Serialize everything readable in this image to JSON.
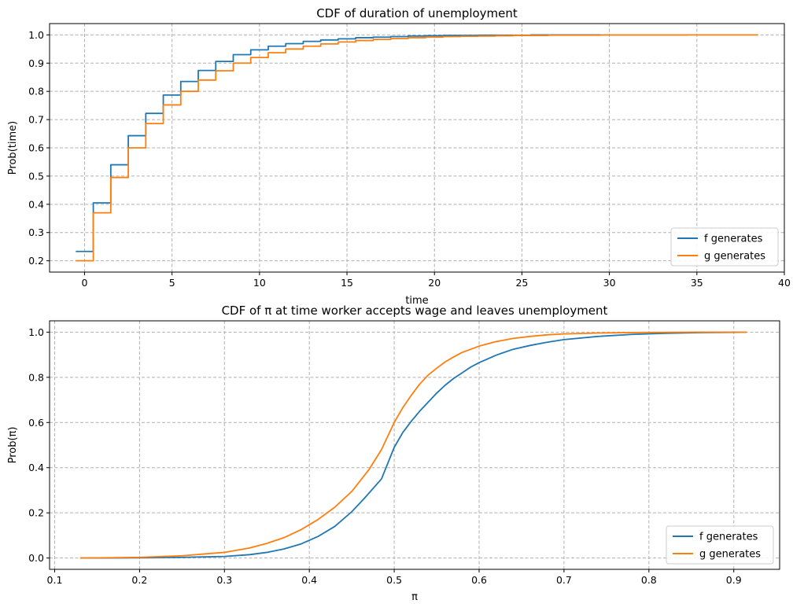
{
  "chart_data": [
    {
      "type": "line",
      "title": "CDF of duration of unemployment",
      "xlabel": "time",
      "ylabel": "Prob(time)",
      "xlim": [
        -2,
        40
      ],
      "ylim": [
        0.16,
        1.04
      ],
      "xticks": [
        0,
        5,
        10,
        15,
        20,
        25,
        30,
        35,
        40
      ],
      "xtick_labels": [
        "0",
        "5",
        "10",
        "15",
        "20",
        "25",
        "30",
        "35",
        "40"
      ],
      "yticks": [
        0.2,
        0.3,
        0.4,
        0.5,
        0.6,
        0.7,
        0.8,
        0.9,
        1.0
      ],
      "ytick_labels": [
        "0.2",
        "0.3",
        "0.4",
        "0.5",
        "0.6",
        "0.7",
        "0.8",
        "0.9",
        "1.0"
      ],
      "grid": true,
      "legend_position": "lower-right",
      "step": true,
      "series": [
        {
          "name": "f generates",
          "color": "#1f77b4",
          "x": [
            0,
            1,
            2,
            3,
            4,
            5,
            6,
            7,
            8,
            9,
            10,
            11,
            12,
            13,
            14,
            15,
            16,
            17,
            18,
            19,
            20,
            21,
            22,
            23,
            24,
            25,
            26,
            27,
            28,
            29,
            30,
            31,
            32,
            33,
            34
          ],
          "y": [
            0.233,
            0.405,
            0.54,
            0.643,
            0.722,
            0.787,
            0.835,
            0.874,
            0.906,
            0.93,
            0.947,
            0.96,
            0.969,
            0.977,
            0.982,
            0.986,
            0.99,
            0.992,
            0.994,
            0.996,
            0.997,
            0.998,
            0.998,
            0.999,
            0.999,
            0.999,
            1.0,
            1.0,
            1.0,
            1.0,
            1.0,
            1.0,
            1.0,
            1.0,
            1.0
          ]
        },
        {
          "name": "g generates",
          "color": "#ff7f0e",
          "x": [
            0,
            1,
            2,
            3,
            4,
            5,
            6,
            7,
            8,
            9,
            10,
            11,
            12,
            13,
            14,
            15,
            16,
            17,
            18,
            19,
            20,
            21,
            22,
            23,
            24,
            25,
            26,
            27,
            28,
            29,
            30,
            31,
            32,
            33,
            34,
            35,
            36,
            37,
            38
          ],
          "y": [
            0.2,
            0.37,
            0.495,
            0.6,
            0.686,
            0.752,
            0.8,
            0.84,
            0.873,
            0.9,
            0.92,
            0.937,
            0.95,
            0.96,
            0.968,
            0.975,
            0.98,
            0.984,
            0.987,
            0.99,
            0.992,
            0.994,
            0.995,
            0.996,
            0.997,
            0.998,
            0.998,
            0.999,
            0.999,
            0.999,
            1.0,
            1.0,
            1.0,
            1.0,
            1.0,
            1.0,
            1.0,
            1.0,
            1.0
          ]
        }
      ]
    },
    {
      "type": "line",
      "title": "CDF of π at time worker accepts wage and leaves unemployment",
      "xlabel": "π",
      "ylabel": "Prob(π)",
      "xlim": [
        0.094,
        0.954
      ],
      "ylim": [
        -0.05,
        1.05
      ],
      "xticks": [
        0.1,
        0.2,
        0.3,
        0.4,
        0.5,
        0.6,
        0.7,
        0.8,
        0.9
      ],
      "xtick_labels": [
        "0.1",
        "0.2",
        "0.3",
        "0.4",
        "0.5",
        "0.6",
        "0.7",
        "0.8",
        "0.9"
      ],
      "yticks": [
        0.0,
        0.2,
        0.4,
        0.6,
        0.8,
        1.0
      ],
      "ytick_labels": [
        "0.0",
        "0.2",
        "0.4",
        "0.6",
        "0.8",
        "1.0"
      ],
      "grid": true,
      "legend_position": "lower-right",
      "step": false,
      "series": [
        {
          "name": "f generates",
          "color": "#1f77b4",
          "x": [
            0.13,
            0.2,
            0.25,
            0.3,
            0.33,
            0.35,
            0.37,
            0.39,
            0.41,
            0.43,
            0.45,
            0.465,
            0.485,
            0.5,
            0.51,
            0.52,
            0.53,
            0.54,
            0.55,
            0.56,
            0.57,
            0.58,
            0.59,
            0.6,
            0.62,
            0.64,
            0.66,
            0.68,
            0.7,
            0.74,
            0.78,
            0.82,
            0.86,
            0.9,
            0.915
          ],
          "y": [
            0.0,
            0.001,
            0.003,
            0.007,
            0.015,
            0.025,
            0.04,
            0.062,
            0.095,
            0.14,
            0.205,
            0.265,
            0.35,
            0.49,
            0.555,
            0.605,
            0.65,
            0.69,
            0.73,
            0.765,
            0.795,
            0.82,
            0.845,
            0.865,
            0.898,
            0.924,
            0.941,
            0.955,
            0.967,
            0.981,
            0.99,
            0.995,
            0.998,
            0.999,
            1.0
          ]
        },
        {
          "name": "g generates",
          "color": "#ff7f0e",
          "x": [
            0.13,
            0.2,
            0.25,
            0.3,
            0.33,
            0.35,
            0.37,
            0.39,
            0.41,
            0.43,
            0.45,
            0.47,
            0.485,
            0.495,
            0.5,
            0.51,
            0.52,
            0.53,
            0.54,
            0.55,
            0.56,
            0.57,
            0.58,
            0.6,
            0.62,
            0.64,
            0.66,
            0.68,
            0.7,
            0.74,
            0.78,
            0.82,
            0.86,
            0.9,
            0.915
          ],
          "y": [
            0.0,
            0.003,
            0.01,
            0.025,
            0.045,
            0.065,
            0.09,
            0.125,
            0.17,
            0.225,
            0.295,
            0.39,
            0.48,
            0.56,
            0.6,
            0.665,
            0.72,
            0.77,
            0.81,
            0.84,
            0.868,
            0.89,
            0.91,
            0.938,
            0.958,
            0.972,
            0.981,
            0.988,
            0.992,
            0.996,
            0.998,
            0.999,
            1.0,
            1.0,
            1.0
          ]
        }
      ]
    }
  ]
}
